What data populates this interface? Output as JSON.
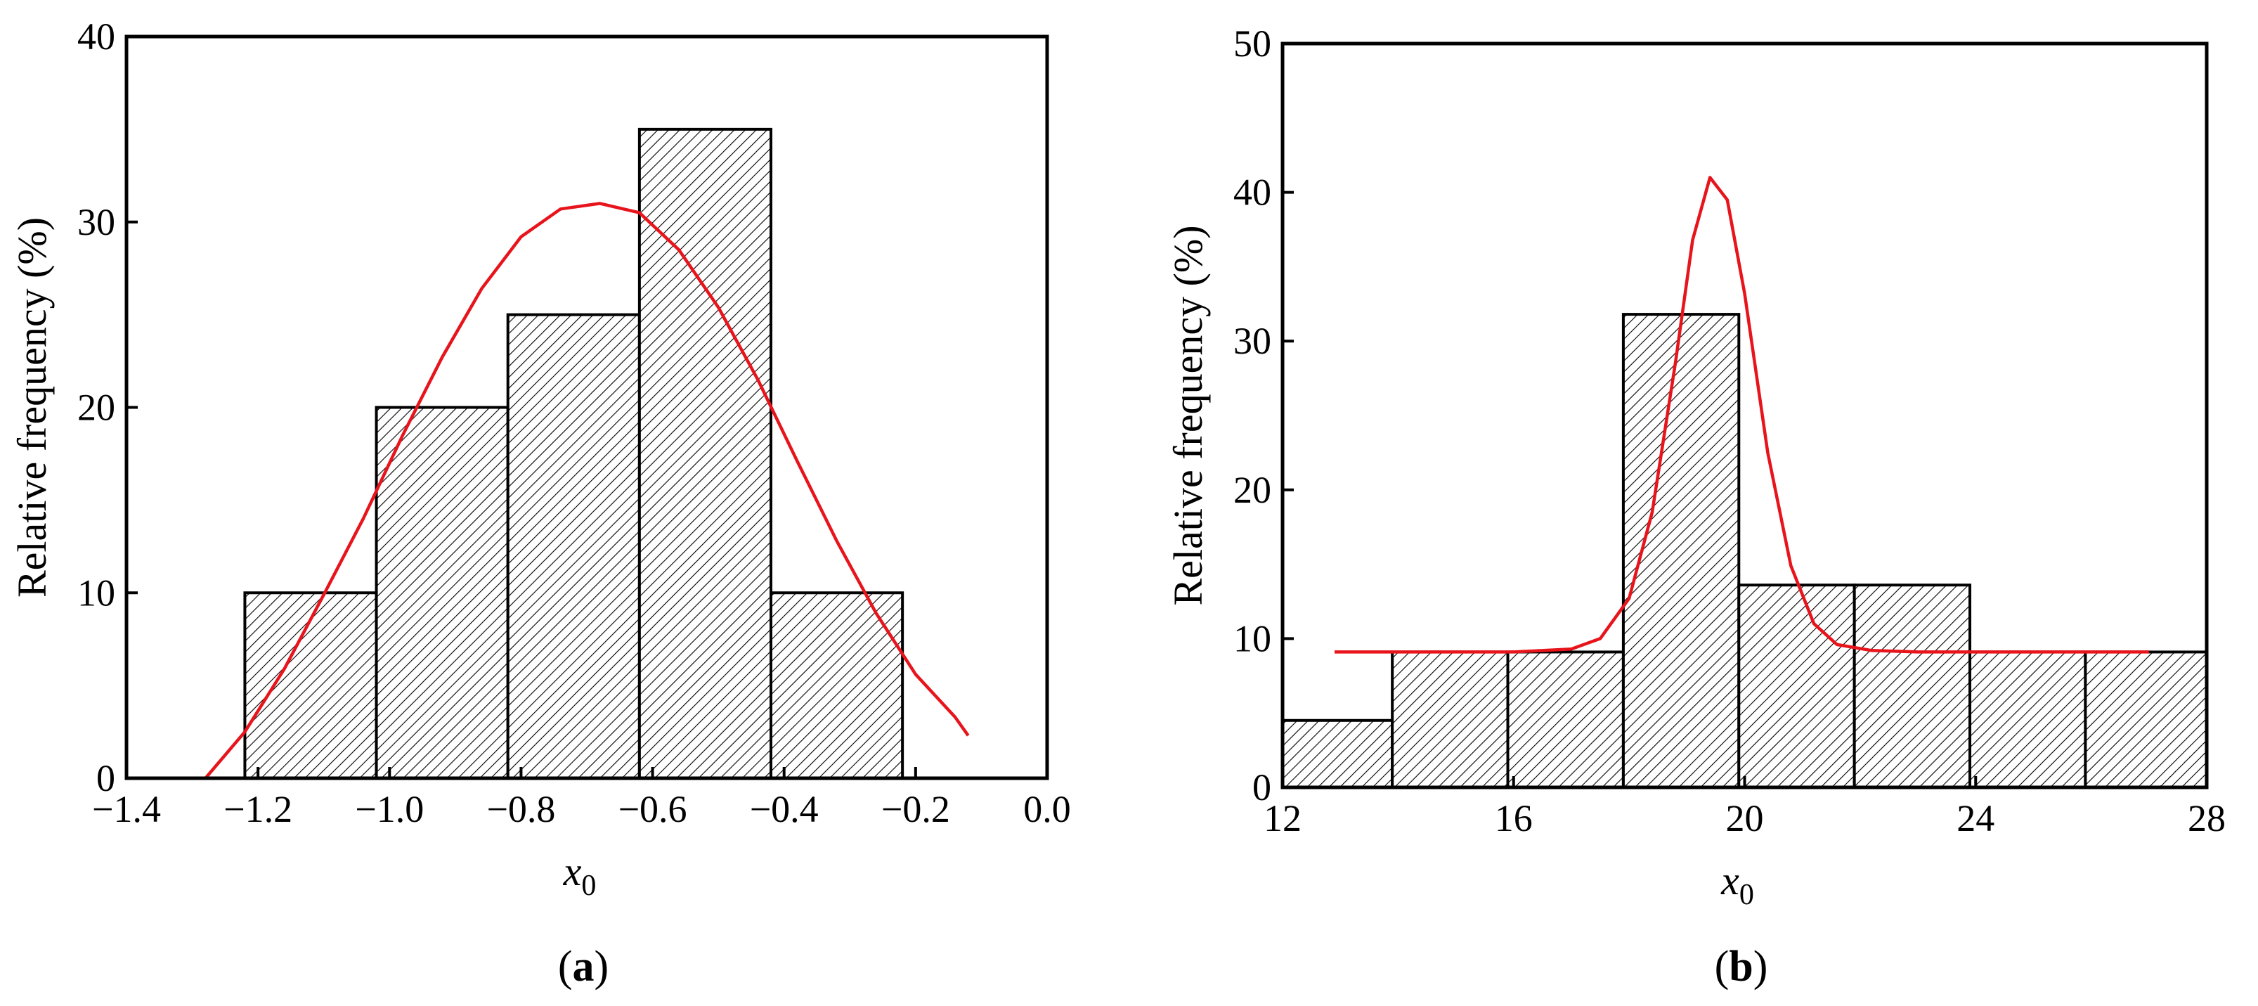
{
  "chart_data": [
    {
      "type": "bar",
      "panel": "a",
      "caption_open": "(",
      "caption_letter": "a",
      "caption_close": ")",
      "xlabel_main": "x",
      "xlabel_sub": "0",
      "ylabel": "Relative frequency (%)",
      "xlim": [
        -1.4,
        0.0
      ],
      "ylim": [
        0,
        40
      ],
      "xticks": [
        -1.4,
        -1.2,
        -1.0,
        -0.8,
        -0.6,
        -0.4,
        -0.2,
        0.0
      ],
      "xtick_labels": [
        "−1.4",
        "−1.2",
        "−1.0",
        "−0.8",
        "−0.6",
        "−0.4",
        "−0.2",
        "0.0"
      ],
      "yticks": [
        0,
        10,
        20,
        30,
        40
      ],
      "ytick_labels": [
        "0",
        "10",
        "20",
        "30",
        "40"
      ],
      "bins": [
        {
          "x0": -1.22,
          "x1": -1.02,
          "value": 10
        },
        {
          "x0": -1.02,
          "x1": -0.82,
          "value": 20
        },
        {
          "x0": -0.82,
          "x1": -0.62,
          "value": 25
        },
        {
          "x0": -0.62,
          "x1": -0.42,
          "value": 35
        },
        {
          "x0": -0.42,
          "x1": -0.22,
          "value": 10
        }
      ],
      "curve": {
        "color": "#e8141c",
        "x": [
          -1.28,
          -1.22,
          -1.16,
          -1.1,
          -1.04,
          -0.98,
          -0.92,
          -0.86,
          -0.8,
          -0.74,
          -0.68,
          -0.62,
          -0.56,
          -0.5,
          -0.44,
          -0.38,
          -0.32,
          -0.26,
          -0.2,
          -0.14,
          -0.12
        ],
        "y": [
          0.0,
          2.5,
          5.9,
          9.9,
          14.0,
          18.5,
          22.7,
          26.4,
          29.2,
          30.7,
          31.0,
          30.5,
          28.5,
          25.4,
          21.5,
          17.1,
          12.8,
          8.9,
          5.6,
          3.3,
          2.3
        ]
      },
      "hatch": true,
      "grid": false
    },
    {
      "type": "bar",
      "panel": "b",
      "caption_open": "(",
      "caption_letter": "b",
      "caption_close": ")",
      "xlabel_main": "x",
      "xlabel_sub": "0",
      "ylabel": "Relative frequency (%)",
      "xlim": [
        12,
        28
      ],
      "ylim": [
        0,
        50
      ],
      "xticks": [
        12,
        16,
        20,
        24,
        28
      ],
      "xtick_labels": [
        "12",
        "16",
        "20",
        "24",
        "28"
      ],
      "yticks": [
        0,
        10,
        20,
        30,
        40,
        50
      ],
      "ytick_labels": [
        "0",
        "10",
        "20",
        "30",
        "40",
        "50"
      ],
      "bins": [
        {
          "x0": 12.0,
          "x1": 13.9,
          "value": 4.5
        },
        {
          "x0": 13.9,
          "x1": 15.9,
          "value": 9.1
        },
        {
          "x0": 15.9,
          "x1": 17.9,
          "value": 9.1
        },
        {
          "x0": 17.9,
          "x1": 19.9,
          "value": 31.8
        },
        {
          "x0": 19.9,
          "x1": 21.9,
          "value": 13.6
        },
        {
          "x0": 21.9,
          "x1": 23.9,
          "value": 13.6
        },
        {
          "x0": 23.9,
          "x1": 25.9,
          "value": 9.1
        },
        {
          "x0": 25.9,
          "x1": 28.0,
          "value": 9.1
        }
      ],
      "curve": {
        "color": "#e8141c",
        "x": [
          12.9,
          14.0,
          15.0,
          16.0,
          17.0,
          17.5,
          18.0,
          18.4,
          18.8,
          19.1,
          19.4,
          19.7,
          20.0,
          20.4,
          20.8,
          21.2,
          21.6,
          22.2,
          23.0,
          24.0,
          25.0,
          26.0,
          27.0
        ],
        "y": [
          9.1,
          9.1,
          9.1,
          9.1,
          9.3,
          10.0,
          12.7,
          18.5,
          28.5,
          36.8,
          41.0,
          39.5,
          33.2,
          22.5,
          14.9,
          11.0,
          9.6,
          9.2,
          9.1,
          9.1,
          9.1,
          9.1,
          9.1
        ]
      },
      "hatch": true,
      "grid": false
    }
  ]
}
